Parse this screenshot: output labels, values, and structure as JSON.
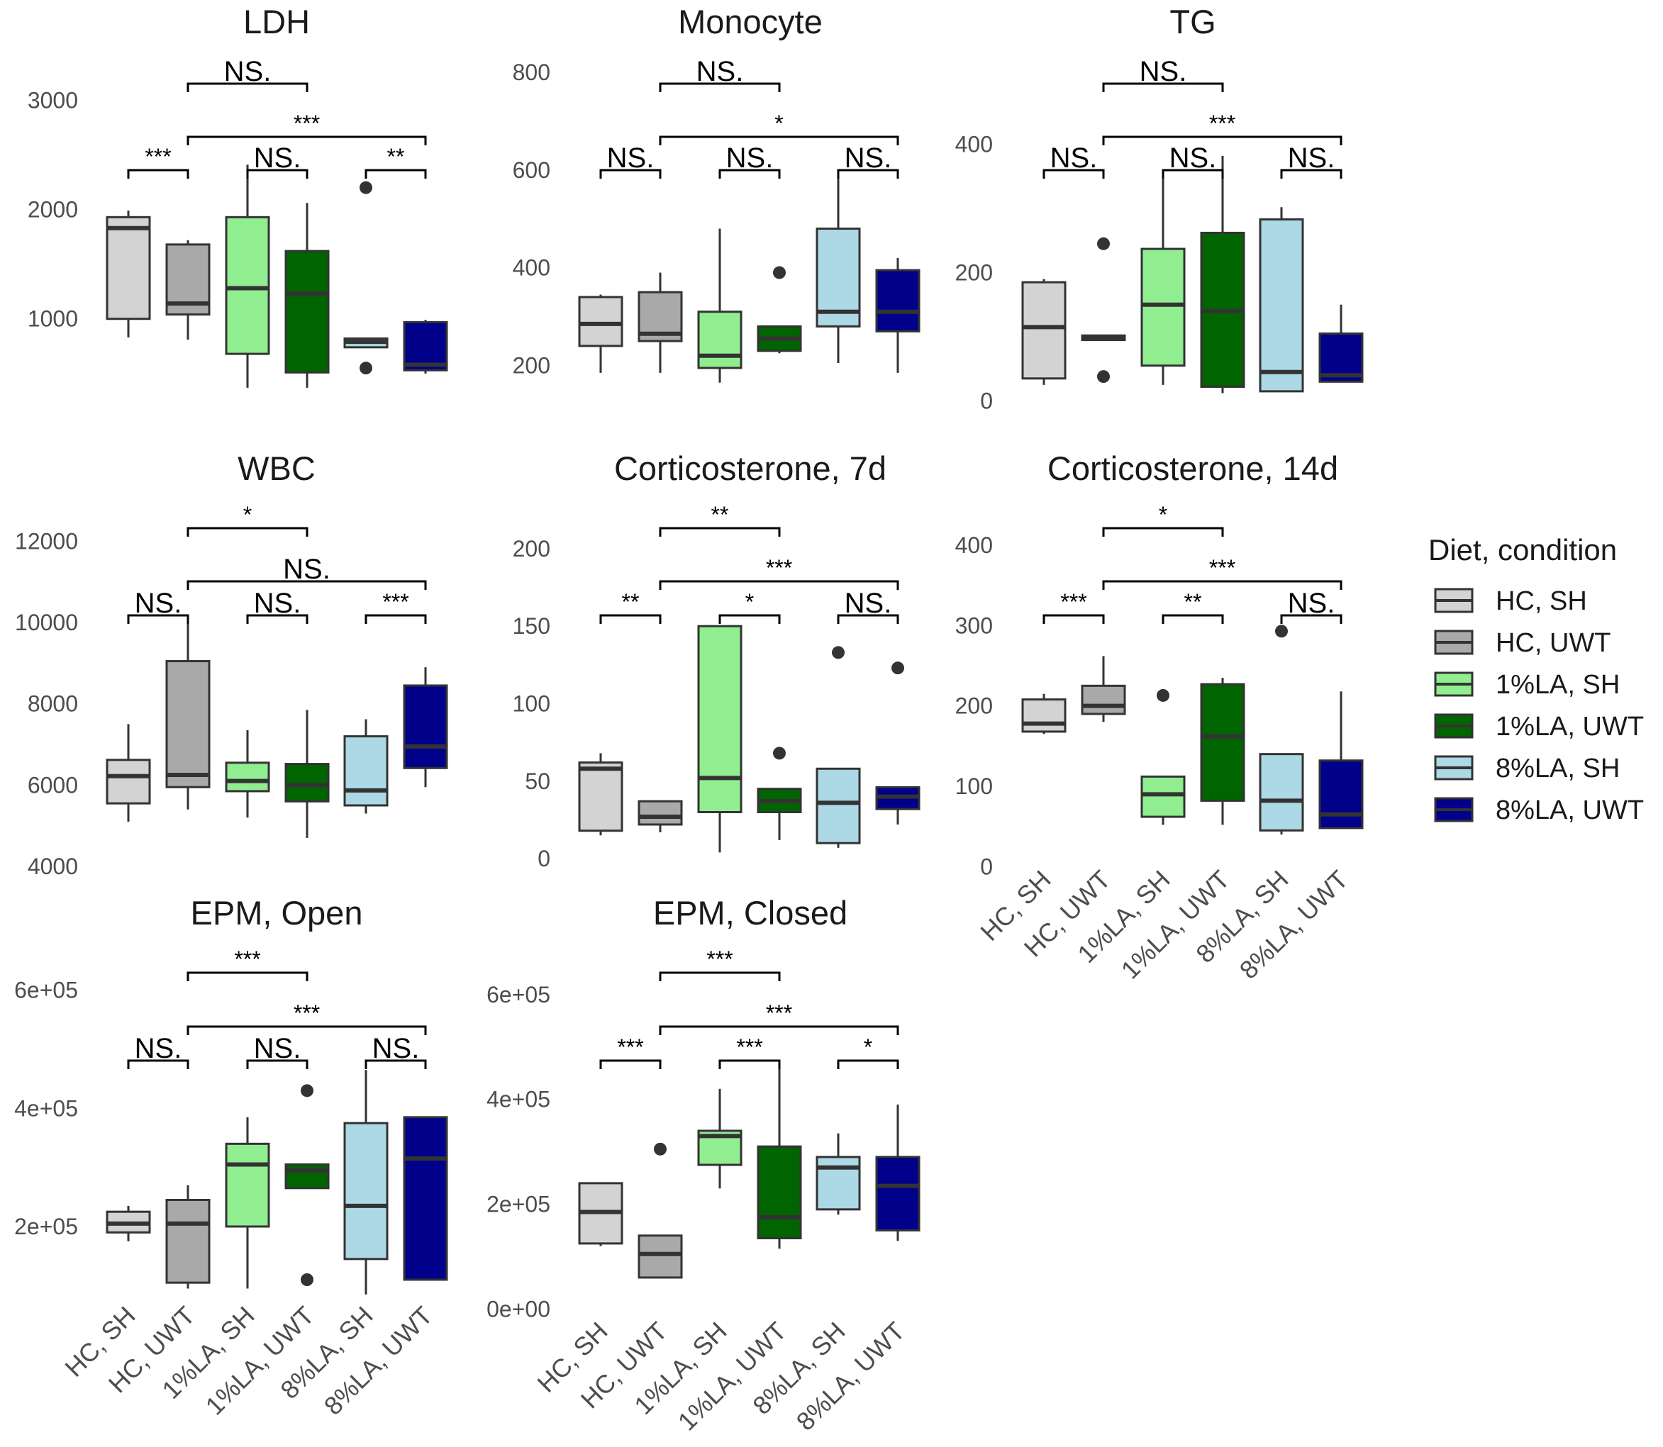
{
  "legend": {
    "title": "Diet, condition",
    "items": [
      {
        "label": "HC, SH",
        "color": "#d3d3d3"
      },
      {
        "label": "HC, UWT",
        "color": "#a9a9a9"
      },
      {
        "label": "1%LA, SH",
        "color": "#90ee90"
      },
      {
        "label": "1%LA, UWT",
        "color": "#006400"
      },
      {
        "label": "8%LA, SH",
        "color": "#add8e6"
      },
      {
        "label": "8%LA, UWT",
        "color": "#00008b"
      }
    ]
  },
  "chart_data": [
    {
      "type": "box",
      "title": "LDH",
      "categories": [
        "HC, SH",
        "HC, UWT",
        "1%LA, SH",
        "1%LA, UWT",
        "8%LA, SH",
        "8%LA, UWT"
      ],
      "ylim": [
        350,
        3300
      ],
      "yticks": [
        1000,
        2000,
        3000
      ],
      "tick_labels": [
        "1000",
        "2000",
        "3000"
      ],
      "boxes": [
        {
          "whisker_low": 830,
          "q1": 1000,
          "median": 1830,
          "q3": 1930,
          "whisker_high": 1990,
          "outliers": []
        },
        {
          "whisker_low": 810,
          "q1": 1040,
          "median": 1140,
          "q3": 1680,
          "whisker_high": 1720,
          "outliers": []
        },
        {
          "whisker_low": 370,
          "q1": 680,
          "median": 1280,
          "q3": 1930,
          "whisker_high": 2410,
          "outliers": []
        },
        {
          "whisker_low": 370,
          "q1": 510,
          "median": 1230,
          "q3": 1620,
          "whisker_high": 2060,
          "outliers": []
        },
        {
          "whisker_low": 740,
          "q1": 740,
          "median": 790,
          "q3": 820,
          "whisker_high": 820,
          "outliers": [
            550,
            2200
          ]
        },
        {
          "whisker_low": 500,
          "q1": 530,
          "median": 580,
          "q3": 970,
          "whisker_high": 990,
          "outliers": []
        }
      ],
      "brackets": [
        {
          "from": 0,
          "to": 1,
          "label": "***",
          "level": 1
        },
        {
          "from": 2,
          "to": 3,
          "label": "NS.",
          "level": 1
        },
        {
          "from": 4,
          "to": 5,
          "label": "**",
          "level": 1
        },
        {
          "from": 1,
          "to": 5,
          "label": "***",
          "level": 2
        },
        {
          "from": 1,
          "to": 3,
          "label": "NS.",
          "level": 3
        }
      ]
    },
    {
      "type": "box",
      "title": "Monocyte",
      "categories": [
        "HC, SH",
        "HC, UWT",
        "1%LA, SH",
        "1%LA, UWT",
        "8%LA, SH",
        "8%LA, UWT"
      ],
      "ylim": [
        150,
        810
      ],
      "yticks": [
        200,
        400,
        600,
        800
      ],
      "tick_labels": [
        "200",
        "400",
        "600",
        "800"
      ],
      "boxes": [
        {
          "whisker_low": 185,
          "q1": 240,
          "median": 285,
          "q3": 340,
          "whisker_high": 345,
          "outliers": []
        },
        {
          "whisker_low": 185,
          "q1": 250,
          "median": 265,
          "q3": 350,
          "whisker_high": 390,
          "outliers": []
        },
        {
          "whisker_low": 165,
          "q1": 195,
          "median": 220,
          "q3": 310,
          "whisker_high": 480,
          "outliers": []
        },
        {
          "whisker_low": 225,
          "q1": 230,
          "median": 255,
          "q3": 280,
          "whisker_high": 280,
          "outliers": [
            390
          ]
        },
        {
          "whisker_low": 205,
          "q1": 280,
          "median": 310,
          "q3": 480,
          "whisker_high": 590,
          "outliers": []
        },
        {
          "whisker_low": 185,
          "q1": 270,
          "median": 310,
          "q3": 395,
          "whisker_high": 420,
          "outliers": []
        }
      ],
      "brackets": [
        {
          "from": 0,
          "to": 1,
          "label": "NS.",
          "level": 1
        },
        {
          "from": 2,
          "to": 3,
          "label": "NS.",
          "level": 1
        },
        {
          "from": 4,
          "to": 5,
          "label": "NS.",
          "level": 1
        },
        {
          "from": 1,
          "to": 5,
          "label": "*",
          "level": 2
        },
        {
          "from": 1,
          "to": 3,
          "label": "NS.",
          "level": 3
        }
      ]
    },
    {
      "type": "box",
      "title": "TG",
      "categories": [
        "HC, SH",
        "HC, UWT",
        "1%LA, SH",
        "1%LA, UWT",
        "8%LA, SH",
        "8%LA, UWT"
      ],
      "ylim": [
        -5,
        520
      ],
      "yticks": [
        0,
        200,
        400
      ],
      "tick_labels": [
        "0",
        "200",
        "400"
      ],
      "boxes": [
        {
          "whisker_low": 25,
          "q1": 35,
          "median": 115,
          "q3": 185,
          "whisker_high": 190,
          "outliers": []
        },
        {
          "whisker_low": 95,
          "q1": 95,
          "median": 100,
          "q3": 102,
          "whisker_high": 102,
          "outliers": [
            38,
            245
          ]
        },
        {
          "whisker_low": 25,
          "q1": 55,
          "median": 150,
          "q3": 237,
          "whisker_high": 357,
          "outliers": []
        },
        {
          "whisker_low": 12,
          "q1": 22,
          "median": 140,
          "q3": 262,
          "whisker_high": 382,
          "outliers": []
        },
        {
          "whisker_low": 15,
          "q1": 15,
          "median": 45,
          "q3": 283,
          "whisker_high": 302,
          "outliers": []
        },
        {
          "whisker_low": 30,
          "q1": 30,
          "median": 40,
          "q3": 105,
          "whisker_high": 150,
          "outliers": []
        }
      ],
      "brackets": [
        {
          "from": 0,
          "to": 1,
          "label": "NS.",
          "level": 1
        },
        {
          "from": 2,
          "to": 3,
          "label": "NS.",
          "level": 1
        },
        {
          "from": 4,
          "to": 5,
          "label": "NS.",
          "level": 1
        },
        {
          "from": 1,
          "to": 5,
          "label": "***",
          "level": 2
        },
        {
          "from": 1,
          "to": 3,
          "label": "NS.",
          "level": 3
        }
      ]
    },
    {
      "type": "box",
      "title": "WBC",
      "categories": [
        "HC, SH",
        "HC, UWT",
        "1%LA, SH",
        "1%LA, UWT",
        "8%LA, SH",
        "8%LA, UWT"
      ],
      "ylim": [
        4000,
        12200
      ],
      "yticks": [
        4000,
        6000,
        8000,
        10000,
        12000
      ],
      "tick_labels": [
        "4000",
        "6000",
        "8000",
        "10000",
        "12000"
      ],
      "boxes": [
        {
          "whisker_low": 5100,
          "q1": 5550,
          "median": 6220,
          "q3": 6620,
          "whisker_high": 7500,
          "outliers": []
        },
        {
          "whisker_low": 5400,
          "q1": 5950,
          "median": 6250,
          "q3": 9050,
          "whisker_high": 10000,
          "outliers": []
        },
        {
          "whisker_low": 5200,
          "q1": 5850,
          "median": 6100,
          "q3": 6550,
          "whisker_high": 7350,
          "outliers": []
        },
        {
          "whisker_low": 4700,
          "q1": 5600,
          "median": 6000,
          "q3": 6520,
          "whisker_high": 7850,
          "outliers": []
        },
        {
          "whisker_low": 5300,
          "q1": 5500,
          "median": 5870,
          "q3": 7200,
          "whisker_high": 7620,
          "outliers": []
        },
        {
          "whisker_low": 5950,
          "q1": 6420,
          "median": 6950,
          "q3": 8450,
          "whisker_high": 8900,
          "outliers": []
        }
      ],
      "brackets": [
        {
          "from": 0,
          "to": 1,
          "label": "NS.",
          "level": 1
        },
        {
          "from": 2,
          "to": 3,
          "label": "NS.",
          "level": 1
        },
        {
          "from": 4,
          "to": 5,
          "label": "***",
          "level": 1
        },
        {
          "from": 1,
          "to": 5,
          "label": "NS.",
          "level": 2
        },
        {
          "from": 1,
          "to": 3,
          "label": "*",
          "level": 3
        }
      ]
    },
    {
      "type": "box",
      "title": "Corticosterone, 7d",
      "categories": [
        "HC, SH",
        "HC, UWT",
        "1%LA, SH",
        "1%LA, UWT",
        "8%LA, SH",
        "8%LA, UWT"
      ],
      "ylim": [
        -5,
        210
      ],
      "yticks": [
        0,
        50,
        100,
        150,
        200
      ],
      "tick_labels": [
        "0",
        "50",
        "100",
        "150",
        "200"
      ],
      "boxes": [
        {
          "whisker_low": 15,
          "q1": 18,
          "median": 58,
          "q3": 62,
          "whisker_high": 68,
          "outliers": []
        },
        {
          "whisker_low": 17,
          "q1": 22,
          "median": 27,
          "q3": 37,
          "whisker_high": 37,
          "outliers": []
        },
        {
          "whisker_low": 4,
          "q1": 30,
          "median": 52,
          "q3": 150,
          "whisker_high": 150,
          "outliers": []
        },
        {
          "whisker_low": 12,
          "q1": 30,
          "median": 37,
          "q3": 45,
          "whisker_high": 45,
          "outliers": [
            68
          ]
        },
        {
          "whisker_low": 7,
          "q1": 10,
          "median": 36,
          "q3": 58,
          "whisker_high": 58,
          "outliers": [
            133
          ]
        },
        {
          "whisker_low": 22,
          "q1": 32,
          "median": 40,
          "q3": 46,
          "whisker_high": 46,
          "outliers": [
            123
          ]
        }
      ],
      "brackets": [
        {
          "from": 0,
          "to": 1,
          "label": "**",
          "level": 1
        },
        {
          "from": 2,
          "to": 3,
          "label": "*",
          "level": 1
        },
        {
          "from": 4,
          "to": 5,
          "label": "NS.",
          "level": 1
        },
        {
          "from": 1,
          "to": 5,
          "label": "***",
          "level": 2
        },
        {
          "from": 1,
          "to": 3,
          "label": "**",
          "level": 3
        }
      ]
    },
    {
      "type": "box",
      "title": "Corticosterone, 14d",
      "categories": [
        "HC, SH",
        "HC, UWT",
        "1%LA, SH",
        "1%LA, UWT",
        "8%LA, SH",
        "8%LA, UWT"
      ],
      "ylim": [
        -5,
        415
      ],
      "yticks": [
        0,
        100,
        200,
        300,
        400
      ],
      "tick_labels": [
        "0",
        "100",
        "200",
        "300",
        "400"
      ],
      "boxes": [
        {
          "whisker_low": 165,
          "q1": 168,
          "median": 178,
          "q3": 208,
          "whisker_high": 215,
          "outliers": []
        },
        {
          "whisker_low": 180,
          "q1": 190,
          "median": 200,
          "q3": 225,
          "whisker_high": 262,
          "outliers": []
        },
        {
          "whisker_low": 52,
          "q1": 62,
          "median": 90,
          "q3": 112,
          "whisker_high": 112,
          "outliers": [
            213
          ]
        },
        {
          "whisker_low": 52,
          "q1": 82,
          "median": 162,
          "q3": 227,
          "whisker_high": 235,
          "outliers": []
        },
        {
          "whisker_low": 40,
          "q1": 45,
          "median": 82,
          "q3": 140,
          "whisker_high": 140,
          "outliers": [
            293
          ]
        },
        {
          "whisker_low": 48,
          "q1": 48,
          "median": 65,
          "q3": 132,
          "whisker_high": 218,
          "outliers": []
        }
      ],
      "brackets": [
        {
          "from": 0,
          "to": 1,
          "label": "***",
          "level": 1
        },
        {
          "from": 2,
          "to": 3,
          "label": "**",
          "level": 1
        },
        {
          "from": 4,
          "to": 5,
          "label": "NS.",
          "level": 1
        },
        {
          "from": 1,
          "to": 5,
          "label": "***",
          "level": 2
        },
        {
          "from": 1,
          "to": 3,
          "label": "*",
          "level": 3
        }
      ]
    },
    {
      "type": "box",
      "title": "EPM, Open",
      "categories": [
        "HC, SH",
        "HC, UWT",
        "1%LA, SH",
        "1%LA, UWT",
        "8%LA, SH",
        "8%LA, UWT"
      ],
      "ylim": [
        80000,
        620000
      ],
      "yticks": [
        200000,
        400000,
        600000
      ],
      "tick_labels": [
        "2e+05",
        "4e+05",
        "6e+05"
      ],
      "boxes": [
        {
          "whisker_low": 175000,
          "q1": 190000,
          "median": 205000,
          "q3": 225000,
          "whisker_high": 235000,
          "outliers": []
        },
        {
          "whisker_low": 95000,
          "q1": 105000,
          "median": 205000,
          "q3": 245000,
          "whisker_high": 270000,
          "outliers": []
        },
        {
          "whisker_low": 95000,
          "q1": 200000,
          "median": 305000,
          "q3": 340000,
          "whisker_high": 385000,
          "outliers": []
        },
        {
          "whisker_low": 265000,
          "q1": 265000,
          "median": 295000,
          "q3": 305000,
          "whisker_high": 305000,
          "outliers": [
            110000,
            430000
          ]
        },
        {
          "whisker_low": 85000,
          "q1": 145000,
          "median": 235000,
          "q3": 375000,
          "whisker_high": 465000,
          "outliers": []
        },
        {
          "whisker_low": 110000,
          "q1": 110000,
          "median": 315000,
          "q3": 385000,
          "whisker_high": 385000,
          "outliers": []
        }
      ],
      "brackets": [
        {
          "from": 0,
          "to": 1,
          "label": "NS.",
          "level": 1
        },
        {
          "from": 2,
          "to": 3,
          "label": "NS.",
          "level": 1
        },
        {
          "from": 4,
          "to": 5,
          "label": "NS.",
          "level": 1
        },
        {
          "from": 1,
          "to": 5,
          "label": "***",
          "level": 2
        },
        {
          "from": 1,
          "to": 3,
          "label": "***",
          "level": 3
        }
      ]
    },
    {
      "type": "box",
      "title": "EPM, Closed",
      "categories": [
        "HC, SH",
        "HC, UWT",
        "1%LA, SH",
        "1%LA, UWT",
        "8%LA, SH",
        "8%LA, UWT"
      ],
      "ylim": [
        -5000,
        620000
      ],
      "yticks": [
        0,
        200000,
        400000,
        600000
      ],
      "tick_labels": [
        "0e+00",
        "2e+05",
        "4e+05",
        "6e+05"
      ],
      "boxes": [
        {
          "whisker_low": 120000,
          "q1": 125000,
          "median": 185000,
          "q3": 240000,
          "whisker_high": 240000,
          "outliers": []
        },
        {
          "whisker_low": 60000,
          "q1": 60000,
          "median": 105000,
          "q3": 140000,
          "whisker_high": 140000,
          "outliers": [
            305000
          ]
        },
        {
          "whisker_low": 230000,
          "q1": 275000,
          "median": 330000,
          "q3": 340000,
          "whisker_high": 420000,
          "outliers": []
        },
        {
          "whisker_low": 115000,
          "q1": 135000,
          "median": 175000,
          "q3": 310000,
          "whisker_high": 465000,
          "outliers": []
        },
        {
          "whisker_low": 180000,
          "q1": 190000,
          "median": 270000,
          "q3": 290000,
          "whisker_high": 335000,
          "outliers": []
        },
        {
          "whisker_low": 130000,
          "q1": 150000,
          "median": 235000,
          "q3": 290000,
          "whisker_high": 390000,
          "outliers": []
        }
      ],
      "brackets": [
        {
          "from": 0,
          "to": 1,
          "label": "***",
          "level": 1
        },
        {
          "from": 2,
          "to": 3,
          "label": "***",
          "level": 1
        },
        {
          "from": 4,
          "to": 5,
          "label": "*",
          "level": 1
        },
        {
          "from": 1,
          "to": 5,
          "label": "***",
          "level": 2
        },
        {
          "from": 1,
          "to": 3,
          "label": "***",
          "level": 3
        }
      ]
    }
  ]
}
